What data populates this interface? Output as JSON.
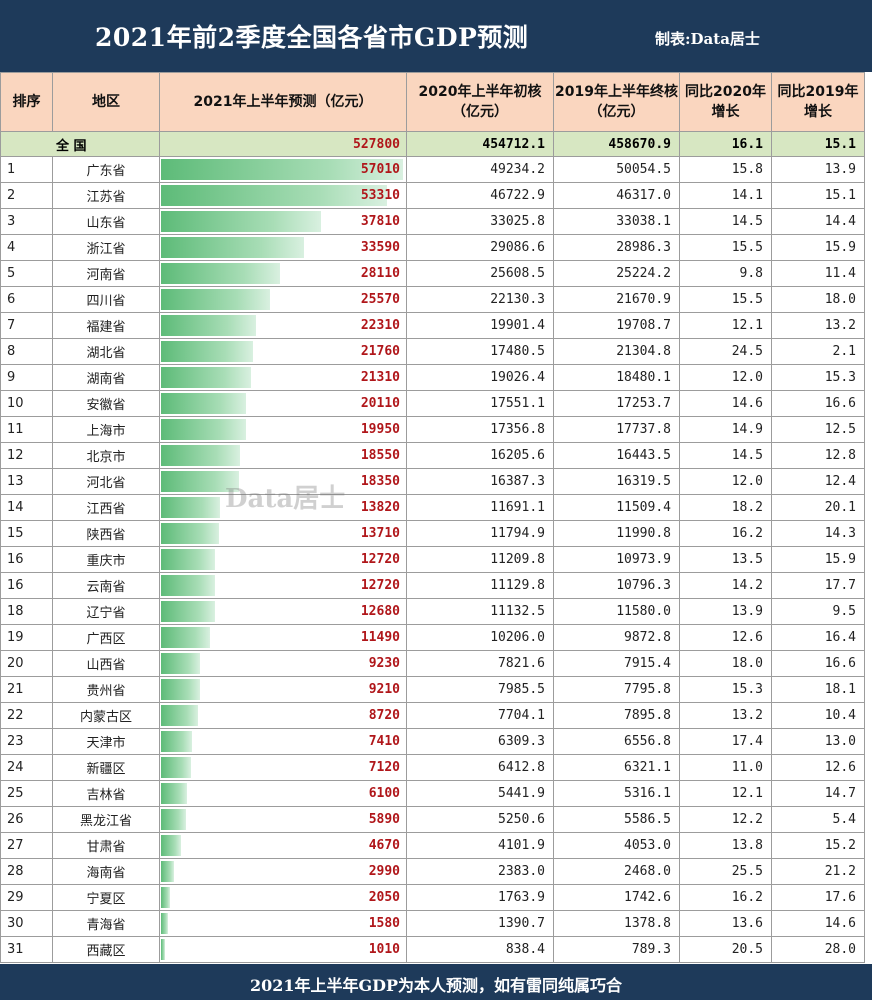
{
  "title": "2021年前2季度全国各省市GDP预测",
  "credit": "制表:Data居士",
  "footnote": "2021年上半年GDP为本人预测，如有雷同纯属巧合",
  "watermark": "Data居士",
  "colors": {
    "header_bg": "#1e3a5a",
    "header_cell": "#fad6bf",
    "total_row": "#d7e7c2",
    "bar": "#5dbb78",
    "pred_text": "#b0161a"
  },
  "table": {
    "headers": {
      "rank": "排序",
      "region": "地区",
      "pred": "2021年上半年预测（亿元）",
      "y2020": "2020年上半年初核（亿元）",
      "y2019": "2019年上半年终核（亿元）",
      "g2020": "同比2020年增长",
      "g2019": "同比2019年增长"
    },
    "total": {
      "label": "全 国",
      "pred": "527800",
      "y2020": "454712.1",
      "y2019": "458670.9",
      "g2020": "16.1",
      "g2019": "15.1"
    },
    "rows": [
      {
        "rank": "1",
        "name": "广东省",
        "pred": "57010",
        "y2020": "49234.2",
        "y2019": "50054.5",
        "g2020": "15.8",
        "g2019": "13.9"
      },
      {
        "rank": "2",
        "name": "江苏省",
        "pred": "53310",
        "y2020": "46722.9",
        "y2019": "46317.0",
        "g2020": "14.1",
        "g2019": "15.1"
      },
      {
        "rank": "3",
        "name": "山东省",
        "pred": "37810",
        "y2020": "33025.8",
        "y2019": "33038.1",
        "g2020": "14.5",
        "g2019": "14.4"
      },
      {
        "rank": "4",
        "name": "浙江省",
        "pred": "33590",
        "y2020": "29086.6",
        "y2019": "28986.3",
        "g2020": "15.5",
        "g2019": "15.9"
      },
      {
        "rank": "5",
        "name": "河南省",
        "pred": "28110",
        "y2020": "25608.5",
        "y2019": "25224.2",
        "g2020": "9.8",
        "g2019": "11.4"
      },
      {
        "rank": "6",
        "name": "四川省",
        "pred": "25570",
        "y2020": "22130.3",
        "y2019": "21670.9",
        "g2020": "15.5",
        "g2019": "18.0"
      },
      {
        "rank": "7",
        "name": "福建省",
        "pred": "22310",
        "y2020": "19901.4",
        "y2019": "19708.7",
        "g2020": "12.1",
        "g2019": "13.2"
      },
      {
        "rank": "8",
        "name": "湖北省",
        "pred": "21760",
        "y2020": "17480.5",
        "y2019": "21304.8",
        "g2020": "24.5",
        "g2019": "2.1"
      },
      {
        "rank": "9",
        "name": "湖南省",
        "pred": "21310",
        "y2020": "19026.4",
        "y2019": "18480.1",
        "g2020": "12.0",
        "g2019": "15.3"
      },
      {
        "rank": "10",
        "name": "安徽省",
        "pred": "20110",
        "y2020": "17551.1",
        "y2019": "17253.7",
        "g2020": "14.6",
        "g2019": "16.6"
      },
      {
        "rank": "11",
        "name": "上海市",
        "pred": "19950",
        "y2020": "17356.8",
        "y2019": "17737.8",
        "g2020": "14.9",
        "g2019": "12.5"
      },
      {
        "rank": "12",
        "name": "北京市",
        "pred": "18550",
        "y2020": "16205.6",
        "y2019": "16443.5",
        "g2020": "14.5",
        "g2019": "12.8"
      },
      {
        "rank": "13",
        "name": "河北省",
        "pred": "18350",
        "y2020": "16387.3",
        "y2019": "16319.5",
        "g2020": "12.0",
        "g2019": "12.4"
      },
      {
        "rank": "14",
        "name": "江西省",
        "pred": "13820",
        "y2020": "11691.1",
        "y2019": "11509.4",
        "g2020": "18.2",
        "g2019": "20.1"
      },
      {
        "rank": "15",
        "name": "陕西省",
        "pred": "13710",
        "y2020": "11794.9",
        "y2019": "11990.8",
        "g2020": "16.2",
        "g2019": "14.3"
      },
      {
        "rank": "16",
        "name": "重庆市",
        "pred": "12720",
        "y2020": "11209.8",
        "y2019": "10973.9",
        "g2020": "13.5",
        "g2019": "15.9"
      },
      {
        "rank": "16",
        "name": "云南省",
        "pred": "12720",
        "y2020": "11129.8",
        "y2019": "10796.3",
        "g2020": "14.2",
        "g2019": "17.7"
      },
      {
        "rank": "18",
        "name": "辽宁省",
        "pred": "12680",
        "y2020": "11132.5",
        "y2019": "11580.0",
        "g2020": "13.9",
        "g2019": "9.5"
      },
      {
        "rank": "19",
        "name": "广西区",
        "pred": "11490",
        "y2020": "10206.0",
        "y2019": "9872.8",
        "g2020": "12.6",
        "g2019": "16.4"
      },
      {
        "rank": "20",
        "name": "山西省",
        "pred": "9230",
        "y2020": "7821.6",
        "y2019": "7915.4",
        "g2020": "18.0",
        "g2019": "16.6"
      },
      {
        "rank": "21",
        "name": "贵州省",
        "pred": "9210",
        "y2020": "7985.5",
        "y2019": "7795.8",
        "g2020": "15.3",
        "g2019": "18.1"
      },
      {
        "rank": "22",
        "name": "内蒙古区",
        "pred": "8720",
        "y2020": "7704.1",
        "y2019": "7895.8",
        "g2020": "13.2",
        "g2019": "10.4"
      },
      {
        "rank": "23",
        "name": "天津市",
        "pred": "7410",
        "y2020": "6309.3",
        "y2019": "6556.8",
        "g2020": "17.4",
        "g2019": "13.0"
      },
      {
        "rank": "24",
        "name": "新疆区",
        "pred": "7120",
        "y2020": "6412.8",
        "y2019": "6321.1",
        "g2020": "11.0",
        "g2019": "12.6"
      },
      {
        "rank": "25",
        "name": "吉林省",
        "pred": "6100",
        "y2020": "5441.9",
        "y2019": "5316.1",
        "g2020": "12.1",
        "g2019": "14.7"
      },
      {
        "rank": "26",
        "name": "黑龙江省",
        "pred": "5890",
        "y2020": "5250.6",
        "y2019": "5586.5",
        "g2020": "12.2",
        "g2019": "5.4"
      },
      {
        "rank": "27",
        "name": "甘肃省",
        "pred": "4670",
        "y2020": "4101.9",
        "y2019": "4053.0",
        "g2020": "13.8",
        "g2019": "15.2"
      },
      {
        "rank": "28",
        "name": "海南省",
        "pred": "2990",
        "y2020": "2383.0",
        "y2019": "2468.0",
        "g2020": "25.5",
        "g2019": "21.2"
      },
      {
        "rank": "29",
        "name": "宁夏区",
        "pred": "2050",
        "y2020": "1763.9",
        "y2019": "1742.6",
        "g2020": "16.2",
        "g2019": "17.6"
      },
      {
        "rank": "30",
        "name": "青海省",
        "pred": "1580",
        "y2020": "1390.7",
        "y2019": "1378.8",
        "g2020": "13.6",
        "g2019": "14.6"
      },
      {
        "rank": "31",
        "name": "西藏区",
        "pred": "1010",
        "y2020": "838.4",
        "y2019": "789.3",
        "g2020": "20.5",
        "g2019": "28.0"
      }
    ]
  },
  "chart_data": {
    "type": "table",
    "title": "2021年前2季度全国各省市GDP预测",
    "columns": [
      "排序",
      "地区",
      "2021年上半年预测（亿元）",
      "2020年上半年初核（亿元）",
      "2019年上半年终核（亿元）",
      "同比2020年增长",
      "同比2019年增长"
    ],
    "bar_column": "2021年上半年预测（亿元）",
    "bar_max": 57010
  }
}
